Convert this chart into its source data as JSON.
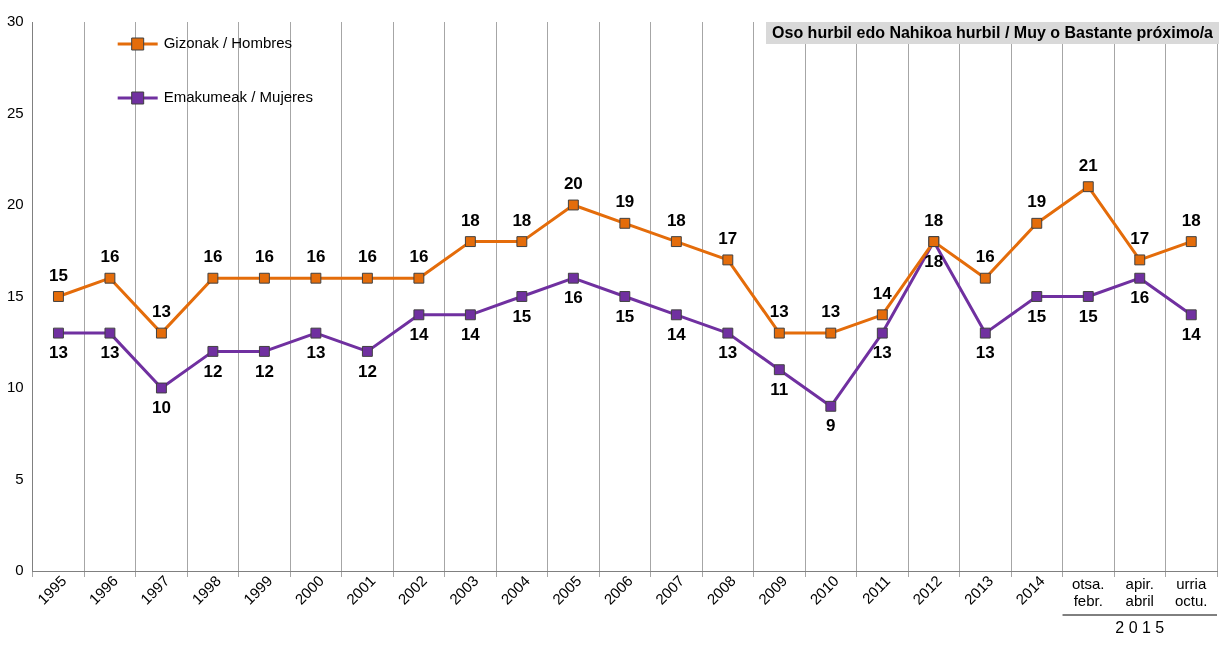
{
  "chart_data": {
    "type": "line",
    "title": "Oso hurbil edo Nahikoa hurbil / Muy o Bastante próximo/a",
    "categories": [
      "1995",
      "1996",
      "1997",
      "1998",
      "1999",
      "2000",
      "2001",
      "2002",
      "2003",
      "2004",
      "2005",
      "2006",
      "2007",
      "2008",
      "2009",
      "2010",
      "2011",
      "2012",
      "2013",
      "2014",
      "otsa.\nfebr.",
      "apir.\nabril",
      "urria\noctu."
    ],
    "series": [
      {
        "name": "Gizonak / Hombres",
        "color": "#e46c0a",
        "values": [
          15,
          16,
          13,
          16,
          16,
          16,
          16,
          16,
          18,
          18,
          20,
          19,
          18,
          17,
          13,
          13,
          14,
          18,
          16,
          19,
          21,
          17,
          18
        ]
      },
      {
        "name": "Emakumeak / Mujeres",
        "color": "#7030a0",
        "values": [
          13,
          13,
          10,
          12,
          12,
          13,
          12,
          14,
          14,
          15,
          16,
          15,
          14,
          13,
          11,
          9,
          13,
          18,
          13,
          15,
          15,
          16,
          14
        ]
      }
    ],
    "ylim": [
      0,
      30
    ],
    "yticks": [
      0,
      5,
      10,
      15,
      20,
      25,
      30
    ],
    "grid": "x",
    "legend": "top left",
    "marker": "square",
    "line_style": "solid",
    "data_labels": true,
    "annotations": [
      "2 0 1 5"
    ]
  }
}
